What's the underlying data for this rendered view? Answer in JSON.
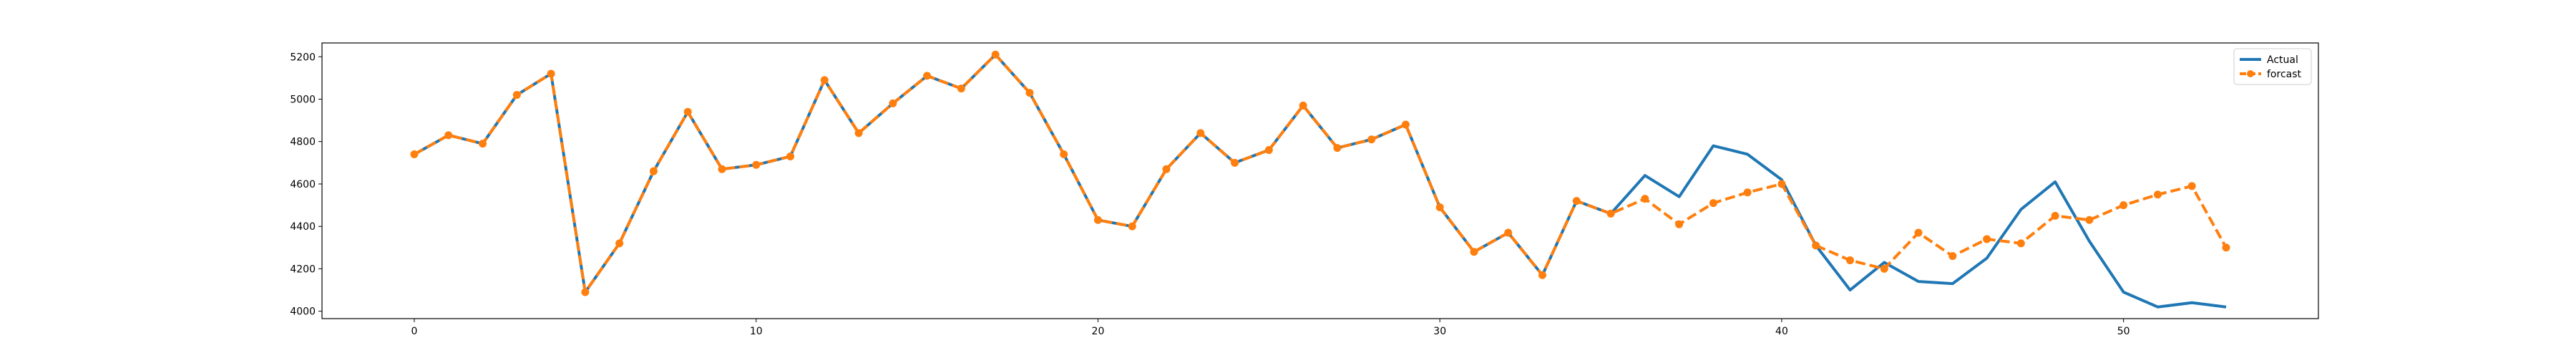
{
  "chart_data": {
    "type": "line",
    "title": "",
    "xlabel": "",
    "ylabel": "",
    "xlim": [
      -2.7,
      55.7
    ],
    "ylim": [
      3965,
      5265
    ],
    "xticks": [
      0,
      10,
      20,
      30,
      40,
      50
    ],
    "yticks": [
      4000,
      4200,
      4400,
      4600,
      4800,
      5000,
      5200
    ],
    "grid": false,
    "legend_position": "top-right",
    "series": [
      {
        "name": "Actual",
        "color": "#1f77b4",
        "style": "solid",
        "marker": "none",
        "x": [
          0,
          1,
          2,
          3,
          4,
          5,
          6,
          7,
          8,
          9,
          10,
          11,
          12,
          13,
          14,
          15,
          16,
          17,
          18,
          19,
          20,
          21,
          22,
          23,
          24,
          25,
          26,
          27,
          28,
          29,
          30,
          31,
          32,
          33,
          34,
          35,
          36,
          37,
          38,
          39,
          40,
          41,
          42,
          43,
          44,
          45,
          46,
          47,
          48,
          49,
          50,
          51,
          52,
          53
        ],
        "values": [
          4740,
          4830,
          4790,
          5020,
          5120,
          4090,
          4320,
          4660,
          4940,
          4670,
          4690,
          4730,
          5090,
          4840,
          4980,
          5110,
          5050,
          5210,
          5030,
          4740,
          4430,
          4400,
          4670,
          4840,
          4700,
          4760,
          4970,
          4770,
          4810,
          4880,
          4490,
          4280,
          4370,
          4170,
          4520,
          4460,
          4640,
          4540,
          4780,
          4740,
          4620,
          4310,
          4100,
          4230,
          4140,
          4130,
          4250,
          4480,
          4610,
          4330,
          4090,
          4020,
          4040,
          4020
        ]
      },
      {
        "name": "forcast",
        "color": "#ff7f0e",
        "style": "dashed",
        "marker": "circle",
        "x": [
          0,
          1,
          2,
          3,
          4,
          5,
          6,
          7,
          8,
          9,
          10,
          11,
          12,
          13,
          14,
          15,
          16,
          17,
          18,
          19,
          20,
          21,
          22,
          23,
          24,
          25,
          26,
          27,
          28,
          29,
          30,
          31,
          32,
          33,
          34,
          35,
          36,
          37,
          38,
          39,
          40,
          41,
          42,
          43,
          44,
          45,
          46,
          47,
          48,
          49,
          50,
          51,
          52,
          53
        ],
        "values": [
          4740,
          4830,
          4790,
          5020,
          5120,
          4090,
          4320,
          4660,
          4940,
          4670,
          4690,
          4730,
          5090,
          4840,
          4980,
          5110,
          5050,
          5210,
          5030,
          4740,
          4430,
          4400,
          4670,
          4840,
          4700,
          4760,
          4970,
          4770,
          4810,
          4880,
          4490,
          4280,
          4370,
          4170,
          4520,
          4460,
          4530,
          4410,
          4510,
          4560,
          4600,
          4310,
          4240,
          4200,
          4370,
          4260,
          4340,
          4320,
          4450,
          4430,
          4500,
          4550,
          4590,
          4300
        ]
      }
    ]
  }
}
